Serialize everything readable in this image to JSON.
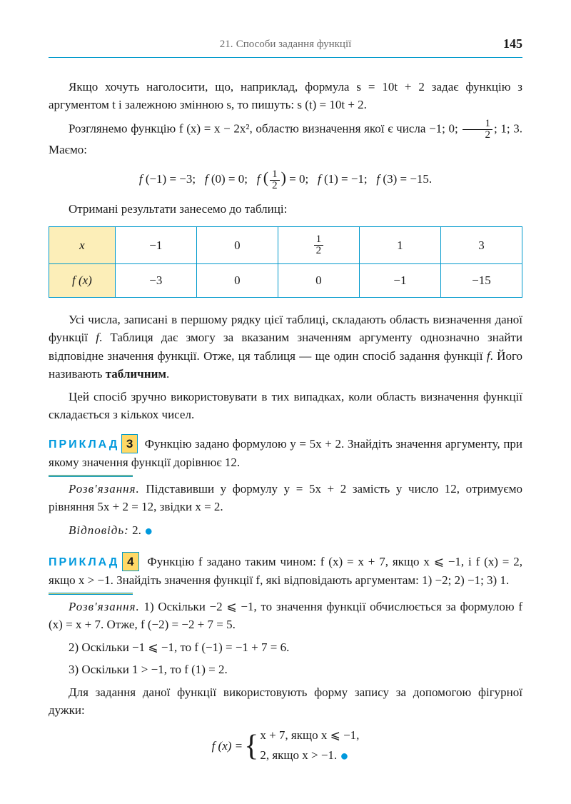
{
  "header": {
    "section_num": "21.",
    "section_title": "Способи задання функції",
    "page": "145"
  },
  "p1": "Якщо хочуть наголосити, що, наприклад, формула s = 10t + 2 задає функцію з аргументом t і залежною змінною s, то пишуть: s (t) = 10t + 2.",
  "p2_a": "Розглянемо функцію  f (x) = x − 2x²,  областю визначення якої є числа −1; 0; ",
  "p2_b": "; 1; 3. Маємо:",
  "formula1": "f (−1) = −3;   f (0) = 0;   f (½) = 0;   f (1) = −1;   f (3) = −15.",
  "p3": "Отримані результати занесемо до таблиці:",
  "table": {
    "head": [
      "x",
      "−1",
      "0",
      "½",
      "1",
      "3"
    ],
    "row": [
      "f (x)",
      "−3",
      "0",
      "0",
      "−1",
      "−15"
    ]
  },
  "p4": "Усі числа, записані в першому рядку цієї таблиці, складають область визначення даної функції f. Таблиця дає змогу за вказаним значенням аргументу однозначно знайти відповідне значення функції. Отже, ця таблиця — ще один спосіб задання функції f. Його називають табличним.",
  "p5": "Цей спосіб зручно використовувати в тих випадках, коли область визначення функції складається з кількох чисел.",
  "ex3": {
    "label": "ПРИКЛАД",
    "num": "3",
    "body": "Функцію задано формулою y = 5x + 2. Знайдіть значення аргументу, при якому значення функції дорівнює 12.",
    "sol_label": "Розв'язання.",
    "sol": " Підставивши у формулу y = 5x + 2 замість y число 12, отримуємо рівняння 5x + 2 = 12, звідки x = 2.",
    "ans_label": "Відповідь:",
    "ans": " 2. "
  },
  "ex4": {
    "label": "ПРИКЛАД",
    "num": "4",
    "body": "Функцію f задано таким чином: f (x) = x + 7, якщо x ⩽ −1, і f (x) = 2, якщо x > −1. Знайдіть значення функції f, які відповідають аргументам: 1) −2; 2) −1; 3) 1.",
    "sol_label": "Розв'язання.",
    "s1": " 1) Оскільки −2 ⩽ −1, то значення функції обчислюється за формулою f (x) = x + 7. Отже, f (−2) = −2 + 7 = 5.",
    "s2": "2) Оскільки −1 ⩽ −1, то f (−1) = −1 + 7 = 6.",
    "s3": "3) Оскільки 1 > −1, то f (1) = 2.",
    "s4": "Для задання даної функції використовують форму запису за допомогою фігурної дужки:",
    "brace_pre": "f (x) =",
    "brace_l1": "x + 7,  якщо x ⩽ −1,",
    "brace_l2": "2,        якщо x > −1. "
  }
}
